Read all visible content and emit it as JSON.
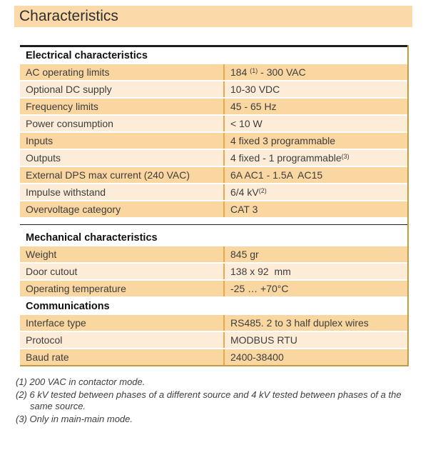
{
  "page_title": "Characteristics",
  "colors": {
    "title_bar_bg": "#fbd9a9",
    "row_dark": "#fad7a1",
    "row_light": "#fdecd7",
    "divider": "#e7a852",
    "outer_border": "#c49b3f",
    "rule_black": "#1e1e1e",
    "text_dark": "#3d3d3d",
    "header_text": "#111111"
  },
  "sections": [
    {
      "title": "Electrical characteristics",
      "top_rule": "thick",
      "gap_before": false,
      "rows": [
        {
          "label": "AC operating limits",
          "value": "184 ",
          "sup": "(1)",
          "post": " - 300 VAC"
        },
        {
          "label": "Optional DC supply",
          "value": "10-30 VDC"
        },
        {
          "label": "Frequency limits",
          "value": "45 - 65 Hz"
        },
        {
          "label": "Power consumption",
          "value": "< 10 W"
        },
        {
          "label": "Inputs",
          "value": "4 fixed 3 programmable"
        },
        {
          "label": "Outputs",
          "value": "4 fixed - 1 programmable",
          "sup": "(3)"
        },
        {
          "label": "External DPS max current (240 VAC)",
          "value": "6A AC1 - 1.5A  AC15"
        },
        {
          "label": "Impulse withstand",
          "value": "6/4 kV",
          "sup": "(2)"
        },
        {
          "label": "Overvoltage category",
          "value": "CAT 3"
        }
      ]
    },
    {
      "title": "Mechanical characteristics",
      "top_rule": "thin",
      "gap_before": true,
      "rows": [
        {
          "label": "Weight",
          "value": "845 gr"
        },
        {
          "label": "Door cutout",
          "value": "138 x 92  mm"
        },
        {
          "label": "Operating temperature",
          "value": "-25 … +70°C"
        }
      ]
    },
    {
      "title": "Communications",
      "top_rule": "none",
      "gap_before": false,
      "rows": [
        {
          "label": "Interface type",
          "value": "RS485. 2 to 3 half duplex wires"
        },
        {
          "label": "Protocol",
          "value": "MODBUS RTU"
        },
        {
          "label": "Baud rate",
          "value": "2400-38400"
        }
      ]
    }
  ],
  "footnotes": [
    "(1) 200 VAC in contactor mode.",
    "(2) 6 kV tested between phases of a different source and 4 kV tested between phases of a the same source.",
    "(3) Only in main-main mode."
  ]
}
